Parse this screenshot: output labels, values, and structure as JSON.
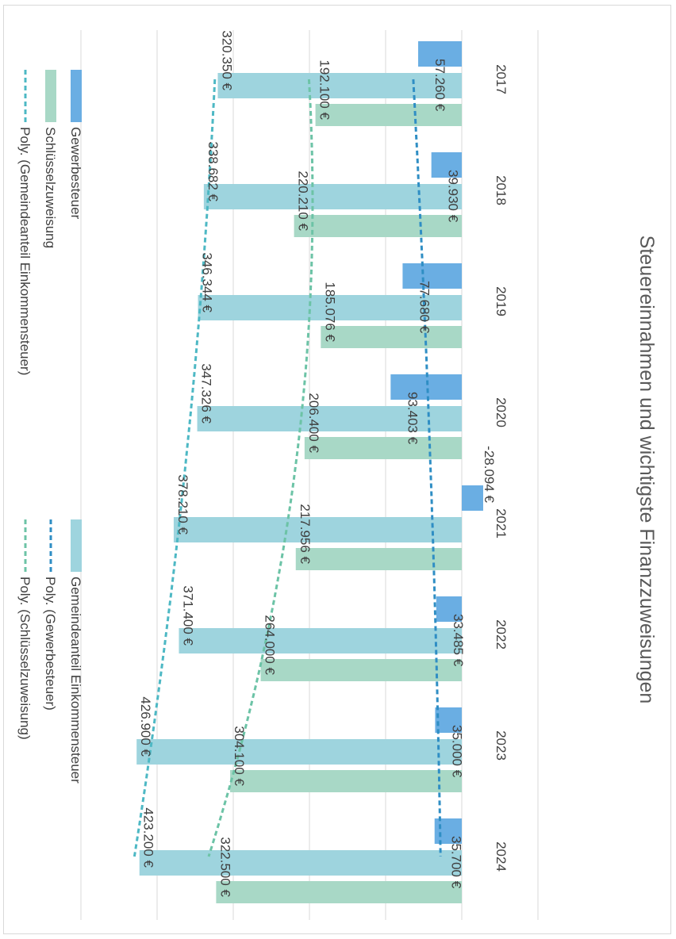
{
  "chart_data": {
    "type": "bar",
    "orientation": "horizontal",
    "title": "Steuereinnahmen und wichtigste Finanzzuweisungen",
    "categories": [
      "2017",
      "2018",
      "2019",
      "2020",
      "2021",
      "2022",
      "2023",
      "2024"
    ],
    "series": [
      {
        "name": "Gewerbesteuer",
        "color": "#6aaee3",
        "values": [
          57260,
          39930,
          77680,
          93403,
          -28094,
          33485,
          35000,
          35700
        ],
        "labels": [
          "57.260 €",
          "39.930 €",
          "77.680 €",
          "93.403 €",
          "-28.094 €",
          "33.485 €",
          "35.000 €",
          "35.700 €"
        ]
      },
      {
        "name": "Gemeindeanteil Einkommensteuer",
        "color": "#9ed4de",
        "values": [
          320350,
          338682,
          346344,
          347326,
          378210,
          371400,
          426900,
          423200
        ],
        "labels": [
          "320.350 €",
          "338.682 €",
          "346.344 €",
          "347.326 €",
          "378.210 €",
          "371.400 €",
          "426.900 €",
          "423.200 €"
        ]
      },
      {
        "name": "Schlüsselzuweisung",
        "color": "#a8d8c6",
        "values": [
          192100,
          220210,
          185076,
          206400,
          217956,
          264000,
          304100,
          322500
        ],
        "labels": [
          "192.100 €",
          "220.210 €",
          "185.076 €",
          "206.400 €",
          "217.956 €",
          "264.000 €",
          "304.100 €",
          "322.500 €"
        ]
      }
    ],
    "trendlines": [
      {
        "name": "Poly. (Gewerbesteuer)",
        "series": "Gewerbesteuer",
        "type": "polynomial",
        "color": "#2f8ec4"
      },
      {
        "name": "Poly. (Gemeindeanteil Einkommensteuer)",
        "series": "Gemeindeanteil Einkommensteuer",
        "type": "polynomial",
        "color": "#4db8c4"
      },
      {
        "name": "Poly. (Schlüsselzuweisung)",
        "series": "Schlüsselzuweisung",
        "type": "polynomial",
        "color": "#6cc3a6"
      }
    ],
    "value_axis": {
      "min": -100000,
      "max": 500000,
      "major_unit": 100000,
      "tick_labels_visible": false
    },
    "grid": true,
    "rotation": "rotated 90 degrees clockwise",
    "legend_position": "left"
  },
  "legend": [
    {
      "label": "Gewerbesteuer",
      "series": 0,
      "kind": "bar"
    },
    {
      "label": "Schlüsselzuweisung",
      "series": 2,
      "kind": "bar"
    },
    {
      "label": "Poly. (Gemeindeanteil Einkommensteuer)",
      "series": 1,
      "kind": "trend"
    },
    {
      "label": "Gemeindeanteil Einkommensteuer",
      "series": 1,
      "kind": "bar"
    },
    {
      "label": "Poly. (Gewerbesteuer)",
      "series": 0,
      "kind": "trend"
    },
    {
      "label": "Poly. (Schlüsselzuweisung)",
      "series": 2,
      "kind": "trend"
    }
  ]
}
